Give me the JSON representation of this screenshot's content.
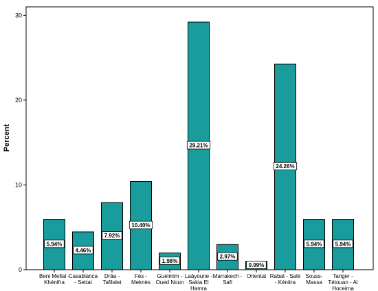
{
  "chart_data": {
    "type": "bar",
    "title": "",
    "xlabel": "",
    "ylabel": "Percent",
    "ylim": [
      0,
      31
    ],
    "yticks": [
      0,
      10,
      20,
      30
    ],
    "grid": false,
    "bar_color": "#1a9c9c",
    "categories": [
      [
        "Beni Mellal -",
        "Khénifra"
      ],
      [
        "Casablanca",
        "- Settat"
      ],
      [
        "Drâa -",
        "Tafilalet"
      ],
      [
        "Fès -",
        "Meknès"
      ],
      [
        "Guelmim -",
        "Oued Noun"
      ],
      [
        "Laâyoune -",
        "Sakia El",
        "Hamra"
      ],
      [
        "Marrakech -",
        "Safi"
      ],
      [
        "Oriental"
      ],
      [
        "Rabat - Salé",
        "- Kénitra"
      ],
      [
        "Souss-",
        "Massa"
      ],
      [
        "Tanger -",
        "Tétouan - Al",
        "Hoceima"
      ]
    ],
    "values": [
      5.94,
      4.46,
      7.92,
      10.4,
      1.98,
      29.21,
      2.97,
      0.99,
      24.26,
      5.94,
      5.94
    ],
    "data_labels": [
      "5.94%",
      "4.46%",
      "7.92%",
      "10.40%",
      "1.98%",
      "29.21%",
      "2.97%",
      "0.99%",
      "24.26%",
      "5.94%",
      "5.94%"
    ]
  }
}
